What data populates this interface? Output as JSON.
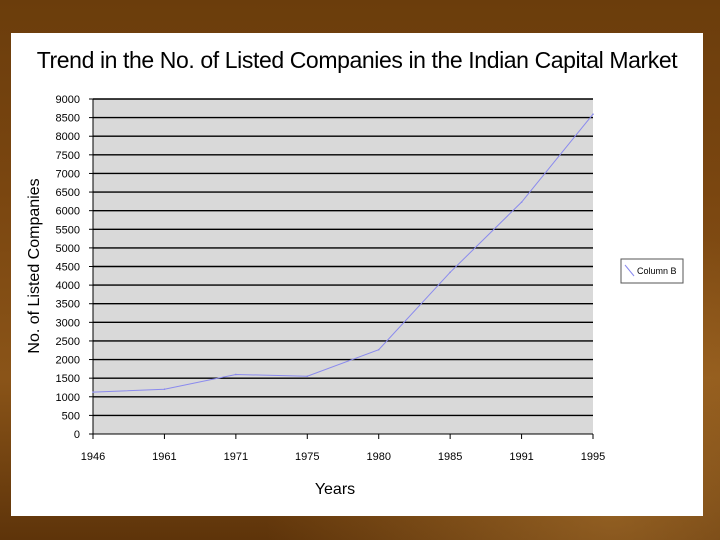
{
  "chart_data": {
    "type": "line",
    "title": "Trend in the No. of Listed Companies in the Indian Capital Market",
    "xlabel": "Years",
    "ylabel": "No. of Listed Companies",
    "categories": [
      "1946",
      "1961",
      "1971",
      "1975",
      "1980",
      "1985",
      "1991",
      "1995"
    ],
    "series": [
      {
        "name": "Column B",
        "values": [
          1125,
          1203,
          1599,
          1552,
          2265,
          4344,
          6229,
          8593
        ],
        "color": "#8a8aee"
      }
    ],
    "ylim": [
      0,
      9000
    ],
    "y_ticks": [
      0,
      500,
      1000,
      1500,
      2000,
      2500,
      3000,
      3500,
      4000,
      4500,
      5000,
      5500,
      6000,
      6500,
      7000,
      7500,
      8000,
      8500,
      9000
    ],
    "grid": true,
    "plot_background": "#d9d9d9",
    "legend_position": "right"
  }
}
